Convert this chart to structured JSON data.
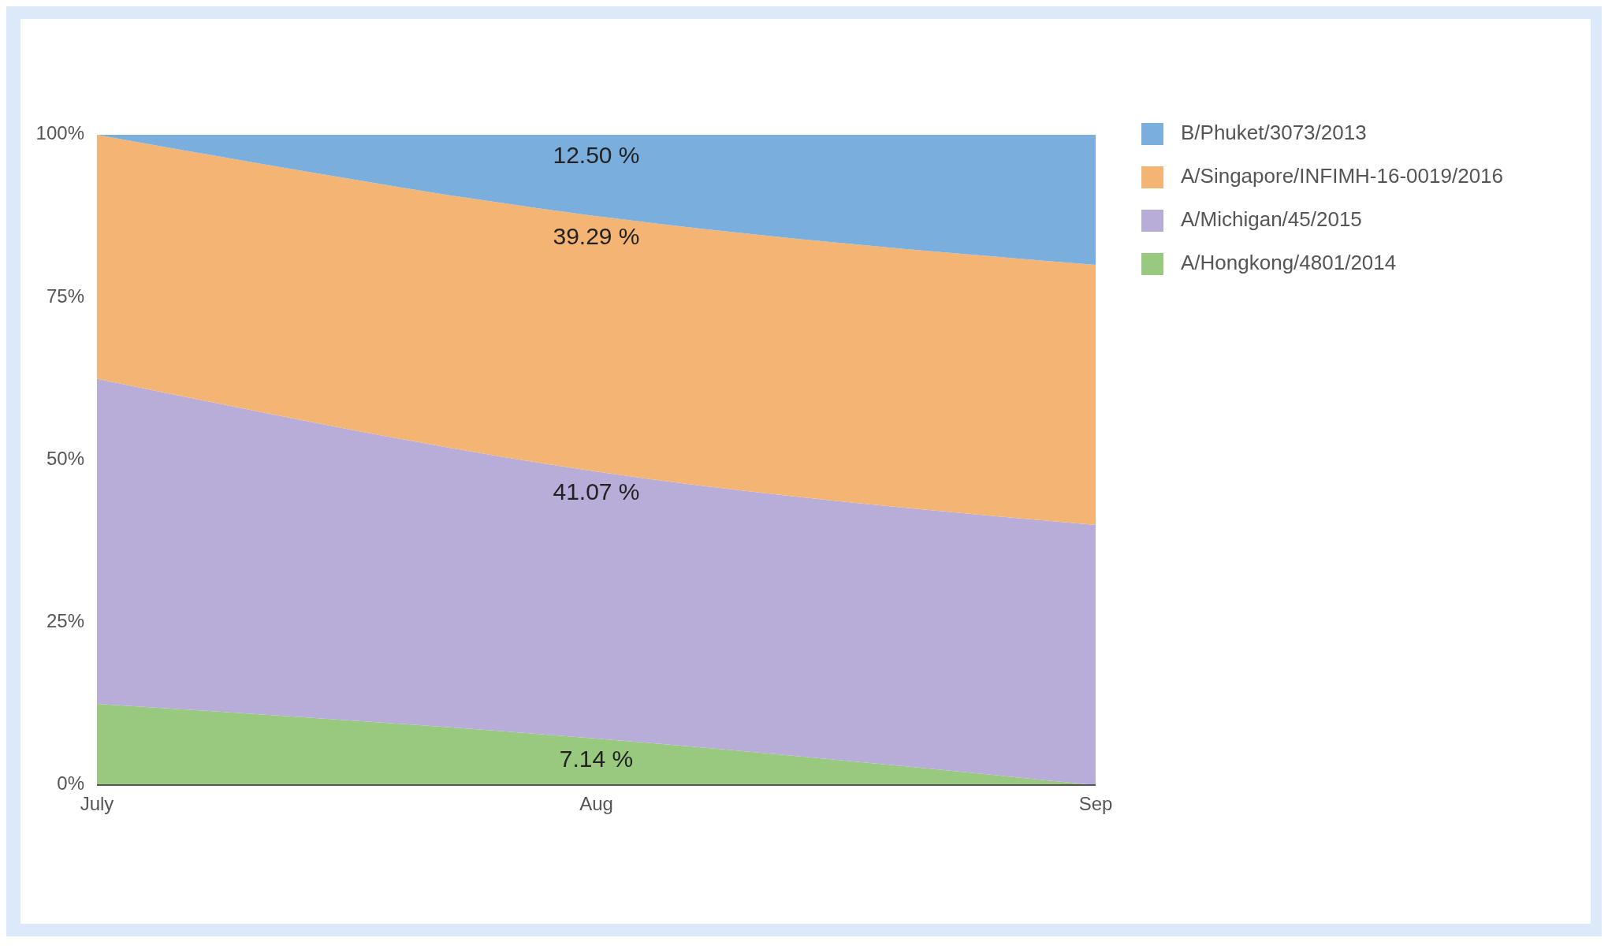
{
  "chart_data": {
    "type": "area",
    "stacked": true,
    "categories": [
      "July",
      "Aug",
      "Sep"
    ],
    "series": [
      {
        "name": "A/Hongkong/4801/2014",
        "color": "#99c97f",
        "values": [
          12.5,
          7.14,
          0
        ],
        "value_labels": [
          null,
          "7.14 %",
          null
        ]
      },
      {
        "name": "A/Michigan/45/2015",
        "color": "#b8acd8",
        "values": [
          50,
          41.07,
          40
        ],
        "value_labels": [
          null,
          "41.07 %",
          null
        ]
      },
      {
        "name": "A/Singapore/INFIMH-16-0019/2016",
        "color": "#f4b574",
        "values": [
          37.5,
          39.29,
          40
        ],
        "value_labels": [
          null,
          "39.29 %",
          null
        ]
      },
      {
        "name": "B/Phuket/3073/2013",
        "color": "#7aaedd",
        "values": [
          0,
          12.5,
          20
        ],
        "value_labels": [
          null,
          "12.50 %",
          null
        ]
      }
    ],
    "ylim": [
      0,
      100
    ],
    "yticks": [
      {
        "value": 0,
        "label": "0%"
      },
      {
        "value": 25,
        "label": "25%"
      },
      {
        "value": 50,
        "label": "50%"
      },
      {
        "value": 75,
        "label": "75%"
      },
      {
        "value": 100,
        "label": "100%"
      }
    ],
    "grid": false,
    "legend": "right"
  }
}
